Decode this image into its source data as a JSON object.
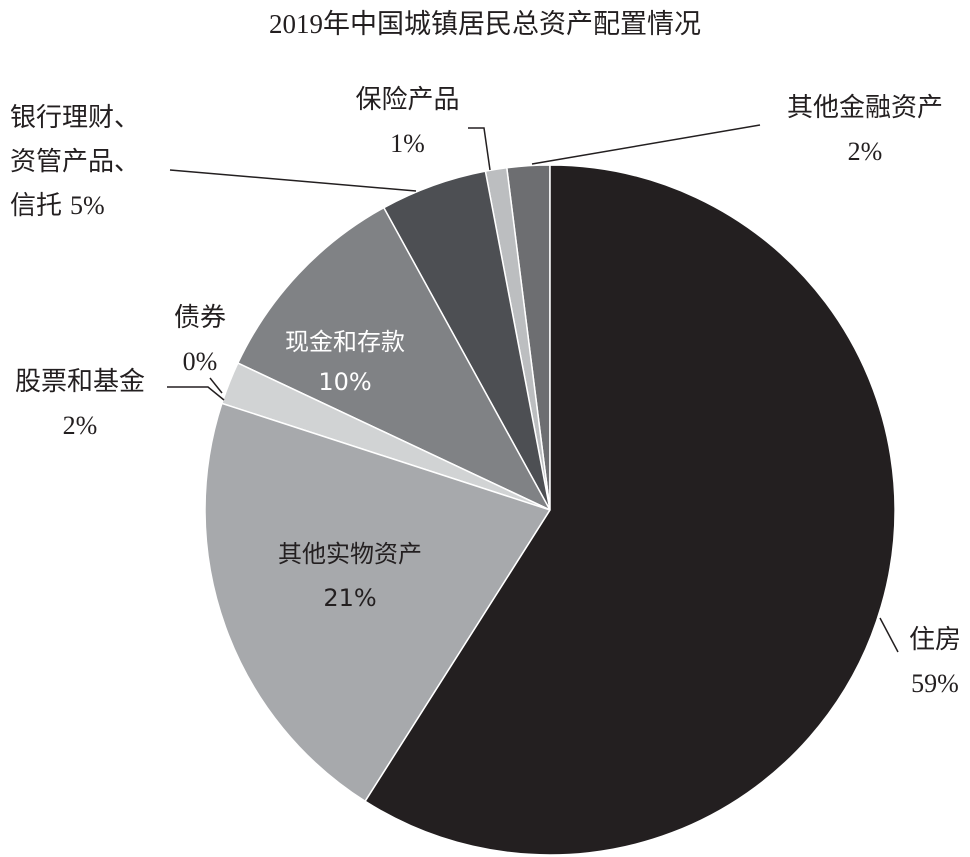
{
  "chart_data": {
    "type": "pie",
    "title": "2019年中国城镇居民总资产配置情况",
    "categories": [
      "住房",
      "其他实物资产",
      "股票和基金",
      "债券",
      "现金和存款",
      "银行理财、资管产品、信托",
      "保险产品",
      "其他金融资产"
    ],
    "values": [
      59,
      21,
      2,
      0,
      10,
      5,
      1,
      2
    ],
    "value_labels": [
      "59%",
      "21%",
      "2%",
      "0%",
      "10%",
      "5%",
      "1%",
      "2%"
    ],
    "colors": [
      "#231f20",
      "#a7a9ac",
      "#d1d3d4",
      "#808285",
      "#808285",
      "#4d4f53",
      "#bcbec0",
      "#6d6e71"
    ]
  }
}
